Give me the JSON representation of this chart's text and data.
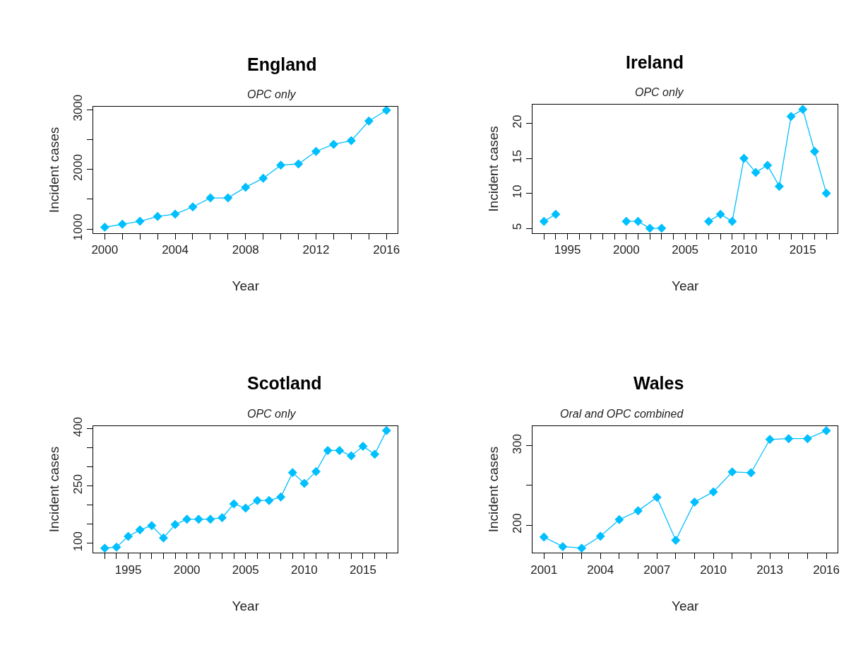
{
  "chart_data": [
    {
      "type": "line",
      "title": "England",
      "subtitle": "OPC only",
      "xlabel": "Year",
      "ylabel": "Incident cases",
      "marker": "diamond",
      "line_style": "solid",
      "x": [
        2000,
        2001,
        2002,
        2003,
        2004,
        2005,
        2006,
        2007,
        2008,
        2009,
        2010,
        2011,
        2012,
        2013,
        2014,
        2015,
        2016
      ],
      "series": [
        {
          "color": "#00bfff",
          "values": [
            1030,
            1080,
            1130,
            1210,
            1250,
            1370,
            1520,
            1520,
            1700,
            1850,
            2070,
            2090,
            2300,
            2420,
            2480,
            2810,
            2990
          ]
        }
      ],
      "xlim": [
        1999.36,
        2016.64
      ],
      "xticks": [
        2000,
        {
          "value": 2001,
          "label": null
        },
        {
          "value": 2002,
          "label": null
        },
        {
          "value": 2003,
          "label": null
        },
        2004,
        {
          "value": 2005,
          "label": null
        },
        {
          "value": 2006,
          "label": null
        },
        {
          "value": 2007,
          "label": null
        },
        2008,
        {
          "value": 2009,
          "label": null
        },
        {
          "value": 2010,
          "label": null
        },
        {
          "value": 2011,
          "label": null
        },
        2012,
        {
          "value": 2013,
          "label": null
        },
        {
          "value": 2014,
          "label": null
        },
        {
          "value": 2015,
          "label": null
        },
        2016
      ],
      "ylim": [
        932,
        3049
      ],
      "yticks": [
        1000,
        {
          "value": 1500,
          "label": null
        },
        2000,
        {
          "value": 2500,
          "label": null
        },
        3000
      ]
    },
    {
      "type": "line",
      "title": "Ireland",
      "subtitle": "OPC only",
      "xlabel": "Year",
      "ylabel": "Incident cases",
      "marker": "diamond",
      "line_style": "solid",
      "x": [
        1993,
        1994,
        1995,
        1996,
        1997,
        1998,
        1999,
        2000,
        2001,
        2002,
        2003,
        2004,
        2005,
        2006,
        2007,
        2008,
        2009,
        2010,
        2011,
        2012,
        2013,
        2014,
        2015,
        2016,
        2017
      ],
      "series": [
        {
          "color": "#00bfff",
          "values": [
            6,
            7,
            null,
            null,
            null,
            null,
            null,
            6,
            6,
            5,
            5,
            null,
            null,
            null,
            6,
            7,
            6,
            15,
            13,
            14,
            11,
            21,
            22,
            16,
            10
          ]
        }
      ],
      "xlim": [
        1992.04,
        2017.96
      ],
      "xticks": [
        {
          "value": 1993,
          "label": null
        },
        {
          "value": 1994,
          "label": null
        },
        1995,
        {
          "value": 1996,
          "label": null
        },
        {
          "value": 1997,
          "label": null
        },
        {
          "value": 1998,
          "label": null
        },
        {
          "value": 1999,
          "label": null
        },
        2000,
        {
          "value": 2001,
          "label": null
        },
        {
          "value": 2002,
          "label": null
        },
        {
          "value": 2003,
          "label": null
        },
        {
          "value": 2004,
          "label": null
        },
        2005,
        {
          "value": 2006,
          "label": null
        },
        {
          "value": 2007,
          "label": null
        },
        {
          "value": 2008,
          "label": null
        },
        {
          "value": 2009,
          "label": null
        },
        2010,
        {
          "value": 2011,
          "label": null
        },
        {
          "value": 2012,
          "label": null
        },
        {
          "value": 2013,
          "label": null
        },
        {
          "value": 2014,
          "label": null
        },
        2015,
        {
          "value": 2016,
          "label": null
        },
        {
          "value": 2017,
          "label": null
        }
      ],
      "ylim": [
        4.32,
        22.68
      ],
      "yticks": [
        5,
        10,
        15,
        20
      ]
    },
    {
      "type": "line",
      "title": "Scotland",
      "subtitle": "OPC only",
      "xlabel": "Year",
      "ylabel": "Incident cases",
      "marker": "diamond",
      "line_style": "solid",
      "x": [
        1993,
        1994,
        1995,
        1996,
        1997,
        1998,
        1999,
        2000,
        2001,
        2002,
        2003,
        2004,
        2005,
        2006,
        2007,
        2008,
        2009,
        2010,
        2011,
        2012,
        2013,
        2014,
        2015,
        2016,
        2017
      ],
      "series": [
        {
          "color": "#00bfff",
          "values": [
            87,
            90,
            118,
            135,
            146,
            114,
            149,
            163,
            163,
            163,
            167,
            203,
            192,
            212,
            212,
            221,
            285,
            257,
            288,
            343,
            343,
            329,
            354,
            333,
            395
          ]
        }
      ],
      "xlim": [
        1992.04,
        2017.96
      ],
      "xticks": [
        {
          "value": 1993,
          "label": null
        },
        {
          "value": 1994,
          "label": null
        },
        1995,
        {
          "value": 1996,
          "label": null
        },
        {
          "value": 1997,
          "label": null
        },
        {
          "value": 1998,
          "label": null
        },
        {
          "value": 1999,
          "label": null
        },
        2000,
        {
          "value": 2001,
          "label": null
        },
        {
          "value": 2002,
          "label": null
        },
        {
          "value": 2003,
          "label": null
        },
        {
          "value": 2004,
          "label": null
        },
        2005,
        {
          "value": 2006,
          "label": null
        },
        {
          "value": 2007,
          "label": null
        },
        {
          "value": 2008,
          "label": null
        },
        {
          "value": 2009,
          "label": null
        },
        2010,
        {
          "value": 2011,
          "label": null
        },
        {
          "value": 2012,
          "label": null
        },
        {
          "value": 2013,
          "label": null
        },
        {
          "value": 2014,
          "label": null
        },
        2015,
        {
          "value": 2016,
          "label": null
        },
        {
          "value": 2017,
          "label": null
        }
      ],
      "ylim": [
        74.7,
        407.3
      ],
      "yticks": [
        100,
        {
          "value": 150,
          "label": null
        },
        {
          "value": 200,
          "label": null
        },
        250,
        {
          "value": 300,
          "label": null
        },
        {
          "value": 350,
          "label": null
        },
        400
      ]
    },
    {
      "type": "line",
      "title": "Wales",
      "subtitle": "Oral and OPC combined",
      "xlabel": "Year",
      "ylabel": "Incident cases",
      "marker": "diamond",
      "line_style": "solid",
      "x": [
        2001,
        2002,
        2003,
        2004,
        2005,
        2006,
        2007,
        2008,
        2009,
        2010,
        2011,
        2012,
        2013,
        2014,
        2015,
        2016
      ],
      "series": [
        {
          "color": "#00bfff",
          "values": [
            185,
            173,
            171,
            186,
            207,
            218,
            235,
            181,
            229,
            242,
            267,
            266,
            308,
            309,
            309,
            319
          ]
        }
      ],
      "xlim": [
        2000.4,
        2016.6
      ],
      "xticks": [
        2001,
        {
          "value": 2002,
          "label": null
        },
        {
          "value": 2003,
          "label": null
        },
        2004,
        {
          "value": 2005,
          "label": null
        },
        {
          "value": 2006,
          "label": null
        },
        2007,
        {
          "value": 2008,
          "label": null
        },
        {
          "value": 2009,
          "label": null
        },
        2010,
        {
          "value": 2011,
          "label": null
        },
        {
          "value": 2012,
          "label": null
        },
        2013,
        {
          "value": 2014,
          "label": null
        },
        {
          "value": 2015,
          "label": null
        },
        2016
      ],
      "ylim": [
        165,
        325
      ],
      "yticks": [
        200,
        {
          "value": 250,
          "label": null
        },
        300
      ]
    }
  ]
}
